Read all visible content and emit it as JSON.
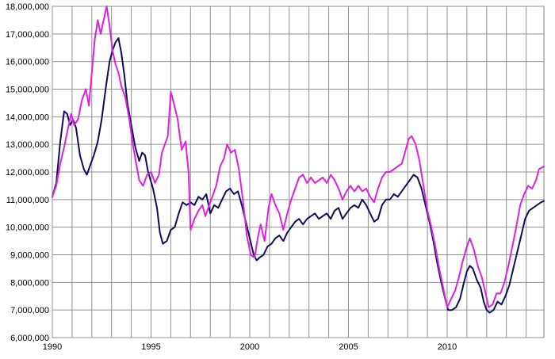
{
  "chart_data": {
    "type": "line",
    "title": "",
    "xlabel": "",
    "ylabel": "",
    "xlim": [
      1990,
      2014.9
    ],
    "ylim": [
      6000000,
      18000000
    ],
    "x_ticks": [
      "1990",
      "1995",
      "2000",
      "2005",
      "2010"
    ],
    "y_ticks": [
      "6,000,000",
      "7,000,000",
      "8,000,000",
      "9,000,000",
      "10,000,000",
      "11,000,000",
      "12,000,000",
      "13,000,000",
      "14,000,000",
      "15,000,000",
      "16,000,000",
      "17,000,000",
      "18,000,000"
    ],
    "grid": true,
    "legend": "none",
    "series": [
      {
        "color": "#0d0d5e",
        "points": [
          [
            1990.0,
            11100000
          ],
          [
            1990.2,
            11600000
          ],
          [
            1990.4,
            13100000
          ],
          [
            1990.6,
            14200000
          ],
          [
            1990.75,
            14100000
          ],
          [
            1990.9,
            13700000
          ],
          [
            1991.05,
            13900000
          ],
          [
            1991.2,
            13600000
          ],
          [
            1991.4,
            12600000
          ],
          [
            1991.6,
            12100000
          ],
          [
            1991.75,
            11900000
          ],
          [
            1991.9,
            12200000
          ],
          [
            1992.1,
            12600000
          ],
          [
            1992.3,
            13100000
          ],
          [
            1992.5,
            13900000
          ],
          [
            1992.7,
            15000000
          ],
          [
            1992.9,
            16000000
          ],
          [
            1993.05,
            16400000
          ],
          [
            1993.2,
            16700000
          ],
          [
            1993.35,
            16850000
          ],
          [
            1993.5,
            16300000
          ],
          [
            1993.65,
            15500000
          ],
          [
            1993.8,
            14500000
          ],
          [
            1994.0,
            13700000
          ],
          [
            1994.2,
            12900000
          ],
          [
            1994.4,
            12400000
          ],
          [
            1994.55,
            12700000
          ],
          [
            1994.7,
            12600000
          ],
          [
            1994.85,
            12000000
          ],
          [
            1995.1,
            11400000
          ],
          [
            1995.3,
            10700000
          ],
          [
            1995.45,
            9800000
          ],
          [
            1995.6,
            9400000
          ],
          [
            1995.8,
            9500000
          ],
          [
            1996.0,
            9900000
          ],
          [
            1996.2,
            10000000
          ],
          [
            1996.4,
            10500000
          ],
          [
            1996.6,
            10900000
          ],
          [
            1996.8,
            10800000
          ],
          [
            1997.0,
            10900000
          ],
          [
            1997.2,
            10800000
          ],
          [
            1997.4,
            11100000
          ],
          [
            1997.6,
            11000000
          ],
          [
            1997.8,
            11200000
          ],
          [
            1998.0,
            10500000
          ],
          [
            1998.2,
            10800000
          ],
          [
            1998.4,
            10700000
          ],
          [
            1998.6,
            11000000
          ],
          [
            1998.8,
            11300000
          ],
          [
            1999.0,
            11400000
          ],
          [
            1999.2,
            11200000
          ],
          [
            1999.4,
            11300000
          ],
          [
            1999.6,
            10800000
          ],
          [
            1999.8,
            10200000
          ],
          [
            2000.0,
            9600000
          ],
          [
            2000.2,
            9000000
          ],
          [
            2000.35,
            8800000
          ],
          [
            2000.5,
            8900000
          ],
          [
            2000.7,
            9000000
          ],
          [
            2000.9,
            9300000
          ],
          [
            2001.1,
            9400000
          ],
          [
            2001.3,
            9600000
          ],
          [
            2001.5,
            9700000
          ],
          [
            2001.7,
            9500000
          ],
          [
            2001.9,
            9800000
          ],
          [
            2002.1,
            10000000
          ],
          [
            2002.3,
            10200000
          ],
          [
            2002.5,
            10300000
          ],
          [
            2002.7,
            10100000
          ],
          [
            2002.9,
            10300000
          ],
          [
            2003.1,
            10400000
          ],
          [
            2003.3,
            10500000
          ],
          [
            2003.5,
            10300000
          ],
          [
            2003.7,
            10400000
          ],
          [
            2003.9,
            10500000
          ],
          [
            2004.1,
            10300000
          ],
          [
            2004.3,
            10600000
          ],
          [
            2004.5,
            10700000
          ],
          [
            2004.7,
            10300000
          ],
          [
            2004.9,
            10500000
          ],
          [
            2005.1,
            10700000
          ],
          [
            2005.3,
            10800000
          ],
          [
            2005.5,
            10700000
          ],
          [
            2005.7,
            11000000
          ],
          [
            2005.9,
            10800000
          ],
          [
            2006.1,
            10500000
          ],
          [
            2006.3,
            10200000
          ],
          [
            2006.5,
            10300000
          ],
          [
            2006.7,
            10800000
          ],
          [
            2006.9,
            11000000
          ],
          [
            2007.1,
            11000000
          ],
          [
            2007.3,
            11200000
          ],
          [
            2007.5,
            11100000
          ],
          [
            2007.7,
            11300000
          ],
          [
            2007.9,
            11500000
          ],
          [
            2008.1,
            11700000
          ],
          [
            2008.3,
            11900000
          ],
          [
            2008.5,
            11800000
          ],
          [
            2008.7,
            11400000
          ],
          [
            2008.9,
            10800000
          ],
          [
            2009.1,
            10200000
          ],
          [
            2009.3,
            9500000
          ],
          [
            2009.5,
            8700000
          ],
          [
            2009.7,
            8000000
          ],
          [
            2009.9,
            7400000
          ],
          [
            2010.05,
            7000000
          ],
          [
            2010.25,
            7000000
          ],
          [
            2010.45,
            7100000
          ],
          [
            2010.65,
            7400000
          ],
          [
            2010.85,
            8000000
          ],
          [
            2011.0,
            8400000
          ],
          [
            2011.15,
            8600000
          ],
          [
            2011.3,
            8500000
          ],
          [
            2011.5,
            8100000
          ],
          [
            2011.7,
            7800000
          ],
          [
            2011.85,
            7300000
          ],
          [
            2012.0,
            7000000
          ],
          [
            2012.15,
            6900000
          ],
          [
            2012.35,
            7000000
          ],
          [
            2012.55,
            7300000
          ],
          [
            2012.75,
            7200000
          ],
          [
            2012.95,
            7500000
          ],
          [
            2013.15,
            7900000
          ],
          [
            2013.35,
            8500000
          ],
          [
            2013.55,
            9100000
          ],
          [
            2013.75,
            9700000
          ],
          [
            2013.95,
            10300000
          ],
          [
            2014.15,
            10600000
          ],
          [
            2014.35,
            10700000
          ],
          [
            2014.55,
            10800000
          ],
          [
            2014.75,
            10900000
          ],
          [
            2014.9,
            10950000
          ]
        ]
      },
      {
        "color": "#e020e0",
        "points": [
          [
            1990.0,
            11100000
          ],
          [
            1990.2,
            11500000
          ],
          [
            1990.4,
            12300000
          ],
          [
            1990.6,
            12900000
          ],
          [
            1990.8,
            13600000
          ],
          [
            1990.95,
            14100000
          ],
          [
            1991.1,
            13700000
          ],
          [
            1991.3,
            13900000
          ],
          [
            1991.5,
            14600000
          ],
          [
            1991.7,
            15000000
          ],
          [
            1991.85,
            14400000
          ],
          [
            1992.0,
            15600000
          ],
          [
            1992.15,
            16800000
          ],
          [
            1992.3,
            17500000
          ],
          [
            1992.45,
            17000000
          ],
          [
            1992.6,
            17500000
          ],
          [
            1992.75,
            18000000
          ],
          [
            1992.9,
            17300000
          ],
          [
            1993.05,
            16400000
          ],
          [
            1993.2,
            15900000
          ],
          [
            1993.35,
            15600000
          ],
          [
            1993.5,
            15100000
          ],
          [
            1993.7,
            14700000
          ],
          [
            1993.9,
            13900000
          ],
          [
            1994.1,
            12900000
          ],
          [
            1994.25,
            12300000
          ],
          [
            1994.4,
            11700000
          ],
          [
            1994.6,
            11500000
          ],
          [
            1994.8,
            11900000
          ],
          [
            1995.0,
            12000000
          ],
          [
            1995.2,
            11600000
          ],
          [
            1995.4,
            11900000
          ],
          [
            1995.55,
            12700000
          ],
          [
            1995.7,
            13000000
          ],
          [
            1995.85,
            13300000
          ],
          [
            1996.0,
            14900000
          ],
          [
            1996.15,
            14500000
          ],
          [
            1996.35,
            13900000
          ],
          [
            1996.55,
            12800000
          ],
          [
            1996.75,
            13100000
          ],
          [
            1996.9,
            12000000
          ],
          [
            1997.0,
            9900000
          ],
          [
            1997.2,
            10300000
          ],
          [
            1997.4,
            10600000
          ],
          [
            1997.6,
            10800000
          ],
          [
            1997.75,
            10400000
          ],
          [
            1997.9,
            10700000
          ],
          [
            1998.1,
            11100000
          ],
          [
            1998.3,
            11500000
          ],
          [
            1998.5,
            12200000
          ],
          [
            1998.7,
            12500000
          ],
          [
            1998.85,
            13000000
          ],
          [
            1999.05,
            12700000
          ],
          [
            1999.25,
            12800000
          ],
          [
            1999.45,
            12100000
          ],
          [
            1999.65,
            11000000
          ],
          [
            1999.85,
            9700000
          ],
          [
            2000.05,
            9000000
          ],
          [
            2000.25,
            8900000
          ],
          [
            2000.4,
            9600000
          ],
          [
            2000.55,
            10100000
          ],
          [
            2000.75,
            9500000
          ],
          [
            2000.95,
            10700000
          ],
          [
            2001.1,
            11200000
          ],
          [
            2001.3,
            10800000
          ],
          [
            2001.5,
            10500000
          ],
          [
            2001.7,
            9900000
          ],
          [
            2001.9,
            10500000
          ],
          [
            2002.1,
            11000000
          ],
          [
            2002.3,
            11400000
          ],
          [
            2002.5,
            11800000
          ],
          [
            2002.7,
            11900000
          ],
          [
            2002.9,
            11600000
          ],
          [
            2003.1,
            11800000
          ],
          [
            2003.3,
            11600000
          ],
          [
            2003.5,
            11700000
          ],
          [
            2003.7,
            11800000
          ],
          [
            2003.9,
            11600000
          ],
          [
            2004.1,
            11900000
          ],
          [
            2004.3,
            11700000
          ],
          [
            2004.5,
            11400000
          ],
          [
            2004.7,
            11000000
          ],
          [
            2004.9,
            11300000
          ],
          [
            2005.1,
            11500000
          ],
          [
            2005.3,
            11300000
          ],
          [
            2005.5,
            11500000
          ],
          [
            2005.7,
            11300000
          ],
          [
            2005.9,
            11400000
          ],
          [
            2006.1,
            11100000
          ],
          [
            2006.3,
            10900000
          ],
          [
            2006.5,
            11400000
          ],
          [
            2006.7,
            11800000
          ],
          [
            2006.9,
            12000000
          ],
          [
            2007.1,
            12000000
          ],
          [
            2007.3,
            12100000
          ],
          [
            2007.5,
            12200000
          ],
          [
            2007.7,
            12300000
          ],
          [
            2007.9,
            12800000
          ],
          [
            2008.05,
            13200000
          ],
          [
            2008.2,
            13300000
          ],
          [
            2008.4,
            13000000
          ],
          [
            2008.6,
            12400000
          ],
          [
            2008.8,
            11500000
          ],
          [
            2009.0,
            10600000
          ],
          [
            2009.2,
            10000000
          ],
          [
            2009.4,
            9300000
          ],
          [
            2009.6,
            8500000
          ],
          [
            2009.8,
            7800000
          ],
          [
            2010.0,
            7100000
          ],
          [
            2010.2,
            7400000
          ],
          [
            2010.4,
            7700000
          ],
          [
            2010.6,
            8200000
          ],
          [
            2010.8,
            8800000
          ],
          [
            2011.0,
            9300000
          ],
          [
            2011.15,
            9600000
          ],
          [
            2011.35,
            9200000
          ],
          [
            2011.55,
            8600000
          ],
          [
            2011.75,
            8200000
          ],
          [
            2011.95,
            7600000
          ],
          [
            2012.1,
            7100000
          ],
          [
            2012.3,
            7200000
          ],
          [
            2012.5,
            7600000
          ],
          [
            2012.7,
            7600000
          ],
          [
            2012.9,
            8000000
          ],
          [
            2013.1,
            8600000
          ],
          [
            2013.3,
            9300000
          ],
          [
            2013.5,
            10000000
          ],
          [
            2013.7,
            10800000
          ],
          [
            2013.9,
            11200000
          ],
          [
            2014.1,
            11500000
          ],
          [
            2014.3,
            11400000
          ],
          [
            2014.5,
            11700000
          ],
          [
            2014.65,
            12100000
          ],
          [
            2014.9,
            12200000
          ]
        ]
      }
    ]
  }
}
